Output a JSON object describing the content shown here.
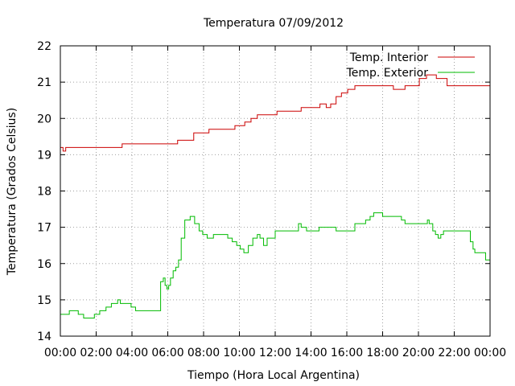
{
  "chart_data": {
    "type": "line",
    "title": "Temperatura 07/09/2012",
    "xlabel": "Tiempo (Hora Local Argentina)",
    "ylabel": "Temperatura (Grados Celsius)",
    "xlim": [
      0,
      24
    ],
    "ylim": [
      14,
      22
    ],
    "grid": true,
    "legend_position": "top-right",
    "x_ticks": [
      0,
      2,
      4,
      6,
      8,
      10,
      12,
      14,
      16,
      18,
      20,
      22,
      24
    ],
    "x_tick_labels": [
      "00:00",
      "02:00",
      "04:00",
      "06:00",
      "08:00",
      "10:00",
      "12:00",
      "14:00",
      "16:00",
      "18:00",
      "20:00",
      "22:00",
      "00:00"
    ],
    "y_ticks": [
      14,
      15,
      16,
      17,
      18,
      19,
      20,
      21,
      22
    ],
    "y_tick_labels": [
      "14",
      "15",
      "16",
      "17",
      "18",
      "19",
      "20",
      "21",
      "22"
    ],
    "series": [
      {
        "name": "Temp. Interior",
        "color": "#cc0000",
        "step": true,
        "x": [
          0,
          0.15,
          0.3,
          3.45,
          4.6,
          6.55,
          7.45,
          8.3,
          9.75,
          10.3,
          10.65,
          11.0,
          11.4,
          12.1,
          13.45,
          14.5,
          14.85,
          15.1,
          15.4,
          15.7,
          16.05,
          16.45,
          18.25,
          18.6,
          19.25,
          20.05,
          20.45,
          20.6,
          21.0,
          21.1,
          21.6,
          24
        ],
        "y": [
          19.2,
          19.1,
          19.2,
          19.3,
          19.3,
          19.4,
          19.6,
          19.7,
          19.8,
          19.9,
          20.0,
          20.1,
          20.1,
          20.2,
          20.3,
          20.4,
          20.3,
          20.4,
          20.6,
          20.7,
          20.8,
          20.9,
          20.9,
          20.8,
          20.9,
          21.1,
          21.2,
          21.2,
          21.1,
          21.1,
          20.9,
          20.9
        ]
      },
      {
        "name": "Temp. Exterior",
        "color": "#00bb00",
        "step": true,
        "x": [
          0,
          0.5,
          1.0,
          1.3,
          1.9,
          2.2,
          2.55,
          2.85,
          3.2,
          3.35,
          3.95,
          4.2,
          5.5,
          5.6,
          5.75,
          5.85,
          5.95,
          6.05,
          6.15,
          6.3,
          6.45,
          6.6,
          6.75,
          6.95,
          7.25,
          7.5,
          7.75,
          7.95,
          8.2,
          8.55,
          9.35,
          9.6,
          9.85,
          10.05,
          10.25,
          10.5,
          10.75,
          11.0,
          11.15,
          11.35,
          11.55,
          12.0,
          13.3,
          13.45,
          13.75,
          14.45,
          15.4,
          16.45,
          16.75,
          17.05,
          17.3,
          17.5,
          18.0,
          19.05,
          19.25,
          20.15,
          20.5,
          20.6,
          20.8,
          20.95,
          21.1,
          21.25,
          21.4,
          21.55,
          21.8,
          22.2,
          22.9,
          23.05,
          23.15,
          23.3,
          23.75,
          24
        ],
        "y": [
          14.6,
          14.7,
          14.6,
          14.5,
          14.6,
          14.7,
          14.8,
          14.9,
          15.0,
          14.9,
          14.8,
          14.7,
          14.7,
          15.5,
          15.6,
          15.4,
          15.3,
          15.4,
          15.6,
          15.8,
          15.9,
          16.1,
          16.7,
          17.2,
          17.3,
          17.1,
          16.9,
          16.8,
          16.7,
          16.8,
          16.7,
          16.6,
          16.5,
          16.4,
          16.3,
          16.5,
          16.7,
          16.8,
          16.7,
          16.5,
          16.7,
          16.9,
          17.1,
          17.0,
          16.9,
          17.0,
          16.9,
          17.1,
          17.1,
          17.2,
          17.3,
          17.4,
          17.3,
          17.2,
          17.1,
          17.1,
          17.2,
          17.1,
          16.9,
          16.8,
          16.7,
          16.8,
          16.9,
          16.9,
          16.9,
          16.9,
          16.6,
          16.4,
          16.3,
          16.3,
          16.1,
          16.0
        ]
      }
    ]
  }
}
